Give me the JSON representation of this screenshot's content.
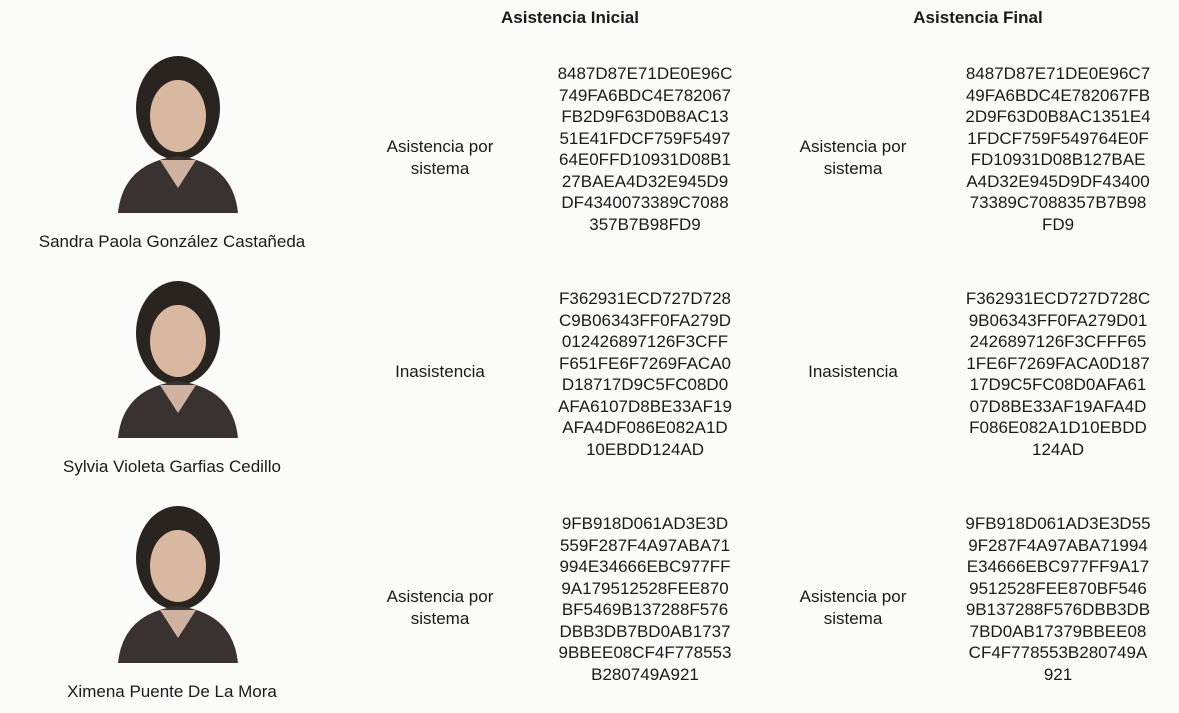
{
  "headers": {
    "initial": "Asistencia Inicial",
    "final": "Asistencia Final"
  },
  "rows": [
    {
      "name": "Sandra Paola González Castañeda",
      "initial_status": "Asistencia por sistema",
      "initial_hash": [
        "8487D87E71DE0E96C",
        "749FA6BDC4E782067",
        "FB2D9F63D0B8AC13",
        "51E41FDCF759F5497",
        "64E0FFD10931D08B1",
        "27BAEA4D32E945D9",
        "DF4340073389C7088",
        "357B7B98FD9"
      ],
      "final_status": "Asistencia por sistema",
      "final_hash": [
        "8487D87E71DE0E96C7",
        "49FA6BDC4E782067FB",
        "2D9F63D0B8AC1351E4",
        "1FDCF759F549764E0F",
        "FD10931D08B127BAE",
        "A4D32E945D9DF43400",
        "73389C7088357B7B98",
        "FD9"
      ]
    },
    {
      "name": "Sylvia Violeta Garfias Cedillo",
      "initial_status": "Inasistencia",
      "initial_hash": [
        "F362931ECD727D728",
        "C9B06343FF0FA279D",
        "012426897126F3CFF",
        "F651FE6F7269FACA0",
        "D18717D9C5FC08D0",
        "AFA6107D8BE33AF19",
        "AFA4DF086E082A1D",
        "10EBDD124AD"
      ],
      "final_status": "Inasistencia",
      "final_hash": [
        "F362931ECD727D728C",
        "9B06343FF0FA279D01",
        "2426897126F3CFFF65",
        "1FE6F7269FACA0D187",
        "17D9C5FC08D0AFA61",
        "07D8BE33AF19AFA4D",
        "F086E082A1D10EBDD",
        "124AD"
      ]
    },
    {
      "name": "Ximena Puente De La Mora",
      "initial_status": "Asistencia por sistema",
      "initial_hash": [
        "9FB918D061AD3E3D",
        "559F287F4A97ABA71",
        "994E34666EBC977FF",
        "9A179512528FEE870",
        "BF5469B137288F576",
        "DBB3DB7BD0AB1737",
        "9BBEE08CF4F778553",
        "B280749A921"
      ],
      "final_status": "Asistencia por sistema",
      "final_hash": [
        "9FB918D061AD3E3D55",
        "9F287F4A97ABA71994",
        "E34666EBC977FF9A17",
        "9512528FEE870BF546",
        "9B137288F576DBB3DB",
        "7BD0AB17379BBEE08",
        "CF4F778553B280749A",
        "921"
      ]
    }
  ]
}
